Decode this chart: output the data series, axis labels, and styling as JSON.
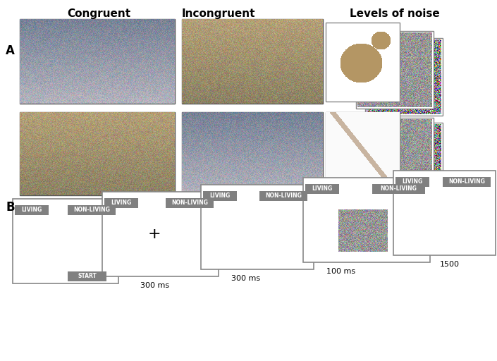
{
  "title_a": "A",
  "title_b": "B",
  "col_labels": [
    "Congruent",
    "Incongruent",
    "Levels of noise"
  ],
  "col_label_fontsize": 11,
  "panel_label_fontsize": 12,
  "button_fontsize": 6,
  "time_labels": [
    "300 ms",
    "300 ms",
    "100 ms",
    "1500"
  ],
  "button_texts": [
    "LIVING",
    "NON-LIVING",
    "START"
  ],
  "gray_button_color": "#808080",
  "white_color": "#ffffff",
  "light_gray": "#d0d0d0",
  "bg_color": "#f5f5f5",
  "border_color": "#888888"
}
